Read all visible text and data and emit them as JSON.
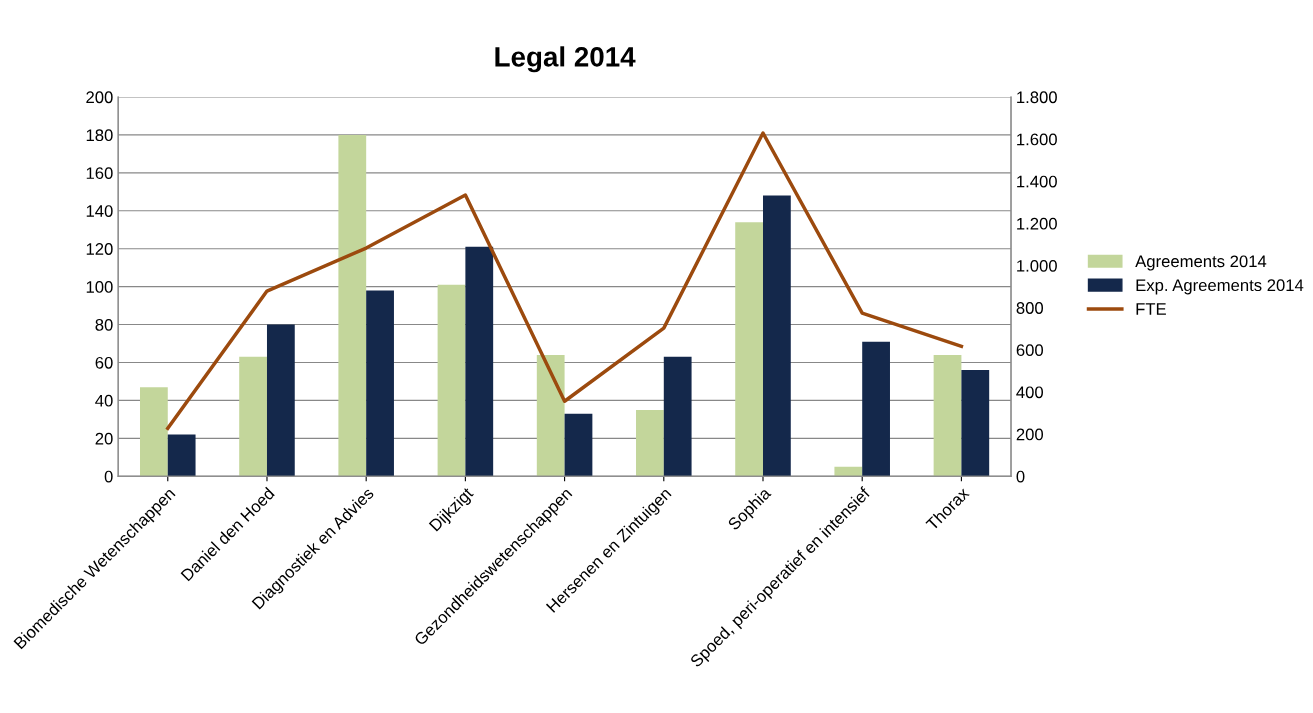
{
  "chart_data": {
    "type": "bar",
    "title": "Legal 2014",
    "categories": [
      "Biomedische Wetenschappen",
      "Daniel den Hoed",
      "Diagnostiek en Advies",
      "Dijkzigt",
      "Gezondheidswetenschappen",
      "Hersenen en Zintuigen",
      "Sophia",
      "Spoed, peri-operatief en intensief",
      "Thorax"
    ],
    "series": [
      {
        "name": "Agreements 2014",
        "color": "#c3d69b",
        "values": [
          47,
          63,
          180,
          101,
          64,
          35,
          134,
          5,
          64
        ]
      },
      {
        "name": "Exp. Agreements 2014",
        "color": "#14284b",
        "values": [
          22,
          80,
          98,
          121,
          33,
          63,
          148,
          71,
          56
        ]
      },
      {
        "name": "FTE",
        "type": "line",
        "axis": "y2",
        "color": "#9c4a0e",
        "values": [
          228,
          879,
          1083,
          1335,
          356,
          703,
          1629,
          774,
          617
        ]
      }
    ],
    "ylim": [
      0,
      200
    ],
    "yticks": [
      0,
      20,
      40,
      60,
      80,
      100,
      120,
      140,
      160,
      180,
      200
    ],
    "y2lim": [
      0,
      1800
    ],
    "y2ticks": [
      0,
      200,
      400,
      600,
      800,
      {
        "value": 1000,
        "label": "1.000"
      },
      {
        "value": 1200,
        "label": "1.200"
      },
      {
        "value": 1400,
        "label": "1.400"
      },
      {
        "value": 1600,
        "label": "1.600"
      },
      {
        "value": 1800,
        "label": "1.800"
      }
    ],
    "grid": "y",
    "legend": "right",
    "marker": "none",
    "line_style": "solid"
  }
}
